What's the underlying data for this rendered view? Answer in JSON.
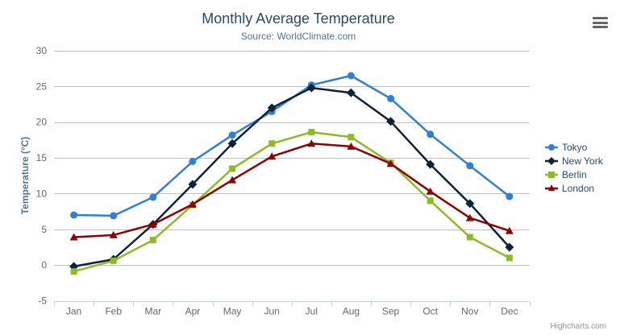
{
  "chart_data": {
    "type": "line",
    "title": "Monthly Average Temperature",
    "subtitle": "Source: WorldClimate.com",
    "xlabel": "",
    "ylabel": "Temperature (°C)",
    "categories": [
      "Jan",
      "Feb",
      "Mar",
      "Apr",
      "May",
      "Jun",
      "Jul",
      "Aug",
      "Sep",
      "Oct",
      "Nov",
      "Dec"
    ],
    "series": [
      {
        "name": "Tokyo",
        "color": "#2f7ed8",
        "marker": "circle",
        "values": [
          7.0,
          6.9,
          9.5,
          14.5,
          18.2,
          21.5,
          25.2,
          26.5,
          23.3,
          18.3,
          13.9,
          9.6
        ]
      },
      {
        "name": "New York",
        "color": "#0d233a",
        "marker": "diamond",
        "values": [
          -0.2,
          0.8,
          5.7,
          11.3,
          17.0,
          22.0,
          24.8,
          24.1,
          20.1,
          14.1,
          8.6,
          2.5
        ]
      },
      {
        "name": "Berlin",
        "color": "#8bbc21",
        "marker": "square",
        "values": [
          -0.9,
          0.6,
          3.5,
          8.4,
          13.5,
          17.0,
          18.6,
          17.9,
          14.3,
          9.0,
          3.9,
          1.0
        ]
      },
      {
        "name": "London",
        "color": "#910000",
        "marker": "triangle",
        "values": [
          3.9,
          4.2,
          5.7,
          8.5,
          11.9,
          15.2,
          17.0,
          16.6,
          14.2,
          10.3,
          6.6,
          4.8
        ]
      }
    ],
    "ylim": [
      -5,
      30
    ],
    "ytick_interval": 5,
    "grid": true,
    "legend_position": "right",
    "grid_color": "#C0C0C0",
    "axis_line_color": "#C0D0E0",
    "credits": "Highcharts.com"
  },
  "icons": {
    "menu": "hamburger-menu-icon"
  }
}
